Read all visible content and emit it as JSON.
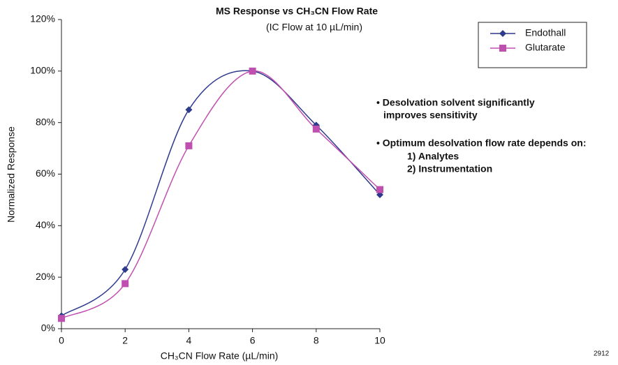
{
  "chart_data": {
    "type": "line",
    "title": "MS Response vs CH₃CN Flow Rate",
    "subtitle": "(IC Flow at 10 µL/min)",
    "x_label": "CH₃CN Flow Rate (µL/min)",
    "y_label": "Normalized Response",
    "x": [
      0,
      2,
      4,
      6,
      8,
      10
    ],
    "series": [
      {
        "name": "Endothall",
        "color": "#2e3a8c",
        "marker": "diamond",
        "values": [
          5,
          23,
          85,
          100,
          79,
          52
        ]
      },
      {
        "name": "Glutarate",
        "color": "#c050b0",
        "marker": "square",
        "values": [
          4,
          17.5,
          71,
          100,
          77.5,
          54
        ]
      }
    ],
    "xlim": [
      0,
      10
    ],
    "xticks": [
      0,
      2,
      4,
      6,
      8,
      10
    ],
    "ylim": [
      0,
      120
    ],
    "yticks": [
      {
        "value": 0,
        "label": "0%"
      },
      {
        "value": 20,
        "label": "20%"
      },
      {
        "value": 40,
        "label": "40%"
      },
      {
        "value": 60,
        "label": "60%"
      },
      {
        "value": 80,
        "label": "80%"
      },
      {
        "value": 100,
        "label": "100%"
      },
      {
        "value": 120,
        "label": "120%"
      }
    ],
    "grid": false,
    "legend": "upper right",
    "annotations": [
      "• Desolvation solvent significantly",
      "improves sensitivity",
      "• Optimum desolvation flow rate depends on:",
      "1) Analytes",
      "2) Instrumentation"
    ],
    "figure_id": "2912"
  }
}
